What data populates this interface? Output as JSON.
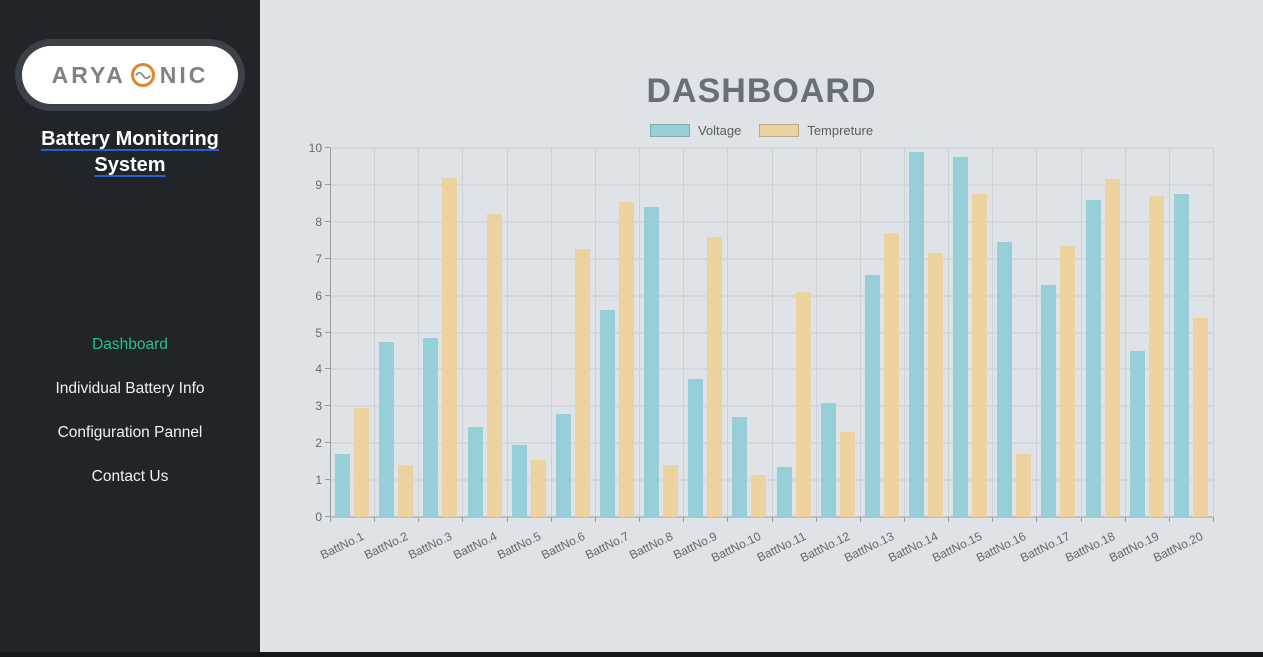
{
  "colors": {
    "accent_green": "#2abf91",
    "link_blue": "#2a5fd0",
    "logo_orange": "#e8832c",
    "sidebar_bg": "#212429",
    "main_bg": "#dfe2e6"
  },
  "sidebar": {
    "logo": {
      "text_left": "ARYA",
      "text_right": "NIC",
      "icon": "sine-wave-circle-icon"
    },
    "title": "Battery Monitoring System",
    "nav": [
      {
        "label": "Dashboard",
        "active": true
      },
      {
        "label": "Individual Battery Info",
        "active": false
      },
      {
        "label": "Configuration Pannel",
        "active": false
      },
      {
        "label": "Contact Us",
        "active": false
      }
    ]
  },
  "main": {
    "title": "DASHBOARD"
  },
  "chart_data": {
    "type": "bar",
    "title": "DASHBOARD",
    "categories": [
      "BattNo.1",
      "BattNo.2",
      "BattNo.3",
      "BattNo.4",
      "BattNo.5",
      "BattNo.6",
      "BattNo.7",
      "BattNo.8",
      "BattNo.9",
      "BattNo.10",
      "BattNo.11",
      "BattNo.12",
      "BattNo.13",
      "BattNo.14",
      "BattNo.15",
      "BattNo.16",
      "BattNo.17",
      "BattNo.18",
      "BattNo.19",
      "BattNo.20"
    ],
    "series": [
      {
        "name": "Voltage",
        "color": "#97cfd8",
        "values": [
          1.7,
          4.75,
          4.85,
          2.45,
          1.95,
          2.8,
          5.6,
          8.4,
          3.75,
          2.7,
          1.35,
          3.1,
          6.55,
          9.9,
          9.75,
          7.45,
          6.3,
          8.6,
          4.5,
          8.75
        ]
      },
      {
        "name": "Tempreture",
        "color": "#ecd29e",
        "values": [
          2.95,
          1.4,
          9.2,
          8.2,
          1.55,
          7.25,
          8.55,
          1.4,
          7.6,
          1.15,
          6.1,
          2.3,
          7.7,
          7.15,
          8.75,
          1.7,
          7.35,
          9.15,
          8.7,
          5.4
        ]
      }
    ],
    "xlabel": "",
    "ylabel": "",
    "ylim": [
      0,
      10
    ],
    "yticks": [
      0,
      1,
      2,
      3,
      4,
      5,
      6,
      7,
      8,
      9,
      10
    ],
    "grid": true,
    "legend_position": "top"
  }
}
